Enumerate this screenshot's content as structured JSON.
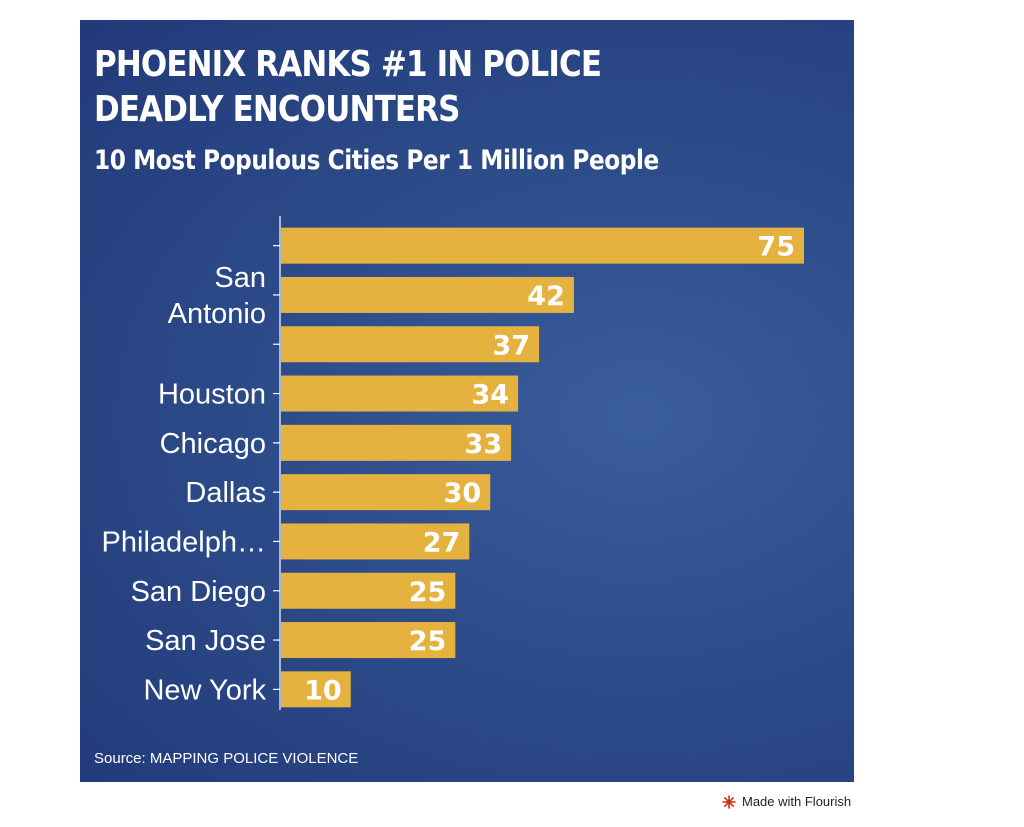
{
  "title": "PHOENIX RANKS #1 IN POLICE DEADLY ENCOUNTERS",
  "subtitle": "10 Most Populous Cities Per 1 Million People",
  "source": "Source: MAPPING POLICE VIOLENCE",
  "footer": {
    "made_with": "Made with Flourish"
  },
  "colors": {
    "background": "#2d4c8a",
    "bar": "#e6b23f",
    "text": "#ffffff"
  },
  "chart_data": {
    "type": "bar",
    "orientation": "horizontal",
    "categories": [
      "",
      "San Antonio",
      "",
      "Houston",
      "Chicago",
      "Dallas",
      "Philadelph…",
      "San Diego",
      "San Jose",
      "New York"
    ],
    "values": [
      75,
      42,
      37,
      34,
      33,
      30,
      27,
      25,
      25,
      10
    ],
    "xlim": [
      0,
      75
    ],
    "grid": false,
    "legend": "none"
  }
}
